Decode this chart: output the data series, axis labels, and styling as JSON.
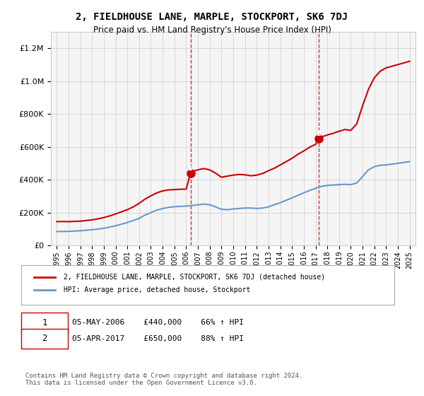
{
  "title": "2, FIELDHOUSE LANE, MARPLE, STOCKPORT, SK6 7DJ",
  "subtitle": "Price paid vs. HM Land Registry's House Price Index (HPI)",
  "legend_line1": "2, FIELDHOUSE LANE, MARPLE, STOCKPORT, SK6 7DJ (detached house)",
  "legend_line2": "HPI: Average price, detached house, Stockport",
  "sale1_label": "1",
  "sale1_date": "05-MAY-2006",
  "sale1_price": "£440,000",
  "sale1_pct": "66% ↑ HPI",
  "sale1_year": 2006.37,
  "sale1_value": 440000,
  "sale2_label": "2",
  "sale2_date": "05-APR-2017",
  "sale2_price": "£650,000",
  "sale2_pct": "88% ↑ HPI",
  "sale2_year": 2017.26,
  "sale2_value": 650000,
  "red_color": "#cc0000",
  "blue_color": "#6699cc",
  "dashed_color": "#cc0000",
  "grid_color": "#cccccc",
  "background_color": "#f5f5f5",
  "ylim": [
    0,
    1300000
  ],
  "xlim": [
    1994.5,
    2025.5
  ],
  "footer": "Contains HM Land Registry data © Crown copyright and database right 2024.\nThis data is licensed under the Open Government Licence v3.0.",
  "hpi_years": [
    1995,
    1995.5,
    1996,
    1996.5,
    1997,
    1997.5,
    1998,
    1998.5,
    1999,
    1999.5,
    2000,
    2000.5,
    2001,
    2001.5,
    2002,
    2002.5,
    2003,
    2003.5,
    2004,
    2004.5,
    2005,
    2005.5,
    2006,
    2006.5,
    2007,
    2007.5,
    2008,
    2008.5,
    2009,
    2009.5,
    2010,
    2010.5,
    2011,
    2011.5,
    2012,
    2012.5,
    2013,
    2013.5,
    2014,
    2014.5,
    2015,
    2015.5,
    2016,
    2016.5,
    2017,
    2017.5,
    2018,
    2018.5,
    2019,
    2019.5,
    2020,
    2020.5,
    2021,
    2021.5,
    2022,
    2022.5,
    2023,
    2023.5,
    2024,
    2024.5,
    2025
  ],
  "hpi_values": [
    85000,
    85500,
    86000,
    88000,
    90000,
    93000,
    96000,
    100000,
    105000,
    112000,
    120000,
    130000,
    140000,
    152000,
    165000,
    185000,
    200000,
    215000,
    225000,
    232000,
    236000,
    238000,
    240000,
    243000,
    248000,
    252000,
    248000,
    235000,
    220000,
    218000,
    222000,
    225000,
    228000,
    228000,
    225000,
    228000,
    235000,
    248000,
    260000,
    275000,
    290000,
    305000,
    320000,
    335000,
    348000,
    360000,
    365000,
    368000,
    370000,
    372000,
    370000,
    380000,
    420000,
    460000,
    480000,
    488000,
    490000,
    495000,
    500000,
    505000,
    510000
  ],
  "red_years": [
    1995,
    1995.5,
    1996,
    1996.5,
    1997,
    1997.5,
    1998,
    1998.5,
    1999,
    1999.5,
    2000,
    2000.5,
    2001,
    2001.5,
    2002,
    2002.5,
    2003,
    2003.5,
    2004,
    2004.5,
    2005,
    2005.5,
    2006,
    2006.37,
    2006.5,
    2007,
    2007.5,
    2008,
    2008.5,
    2009,
    2009.5,
    2010,
    2010.5,
    2011,
    2011.5,
    2012,
    2012.5,
    2013,
    2013.5,
    2014,
    2014.5,
    2015,
    2015.5,
    2016,
    2016.5,
    2017,
    2017.26,
    2017.5,
    2018,
    2018.5,
    2019,
    2019.5,
    2020,
    2020.5,
    2021,
    2021.5,
    2022,
    2022.5,
    2023,
    2023.5,
    2024,
    2024.5,
    2025
  ],
  "red_values": [
    145000,
    146000,
    145000,
    147000,
    148000,
    152000,
    156000,
    162000,
    170000,
    180000,
    192000,
    205000,
    218000,
    235000,
    256000,
    282000,
    302000,
    320000,
    332000,
    338000,
    340000,
    342000,
    343000,
    440000,
    450000,
    460000,
    468000,
    460000,
    440000,
    415000,
    422000,
    428000,
    432000,
    430000,
    424000,
    428000,
    438000,
    455000,
    470000,
    490000,
    510000,
    530000,
    555000,
    575000,
    598000,
    615000,
    650000,
    660000,
    672000,
    682000,
    695000,
    705000,
    700000,
    740000,
    850000,
    950000,
    1020000,
    1060000,
    1080000,
    1090000,
    1100000,
    1110000,
    1120000
  ]
}
